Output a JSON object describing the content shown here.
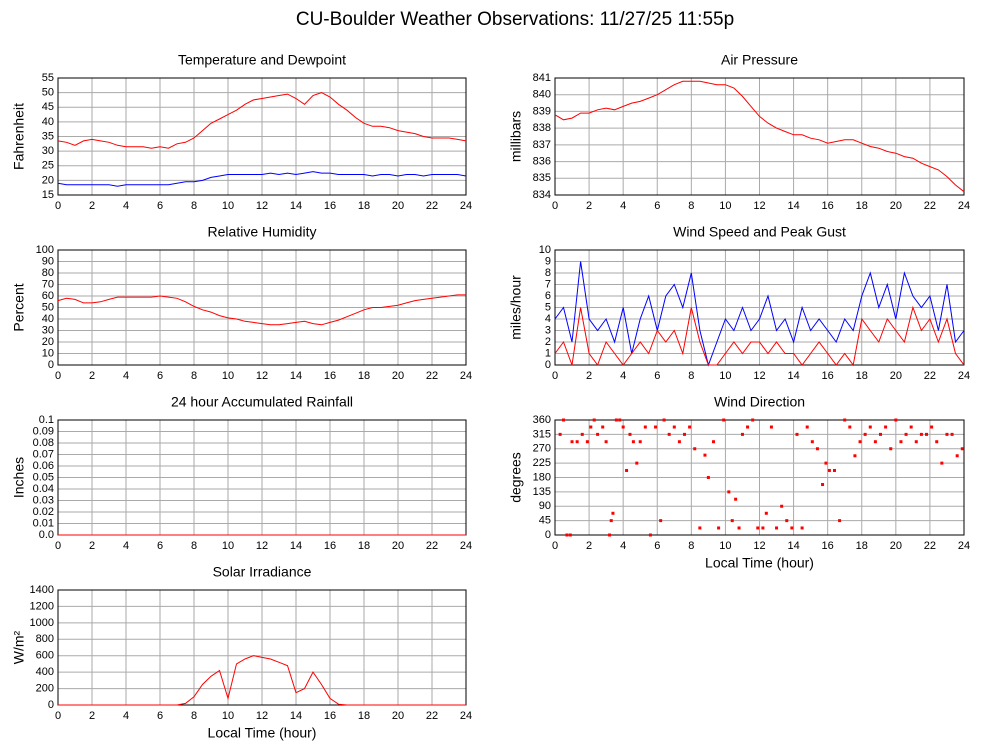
{
  "title": "CU-Boulder Weather Observations: 11/27/25 11:55p",
  "chart_data": [
    {
      "type": "line",
      "title": "Temperature and Dewpoint",
      "y_label": "Fahrenheit",
      "grid": true,
      "xlim": [
        0,
        24
      ],
      "xticks": [
        0,
        2,
        4,
        6,
        8,
        10,
        12,
        14,
        16,
        18,
        20,
        22,
        24
      ],
      "ylim": [
        15,
        55
      ],
      "yticks": [
        15,
        20,
        25,
        30,
        35,
        40,
        45,
        50,
        55
      ],
      "x": [
        0,
        0.5,
        1,
        1.5,
        2,
        2.5,
        3,
        3.5,
        4,
        4.5,
        5,
        5.5,
        6,
        6.5,
        7,
        7.5,
        8,
        8.5,
        9,
        9.5,
        10,
        10.5,
        11,
        11.5,
        12,
        12.5,
        13,
        13.5,
        14,
        14.5,
        15,
        15.5,
        16,
        16.5,
        17,
        17.5,
        18,
        18.5,
        19,
        19.5,
        20,
        20.5,
        21,
        21.5,
        22,
        22.5,
        23,
        23.5,
        24
      ],
      "series": [
        {
          "color": "#ff0000",
          "values": [
            33.5,
            33,
            32,
            33.5,
            34,
            33.5,
            33,
            32,
            31.5,
            31.5,
            31.5,
            31,
            31.5,
            31,
            32.5,
            33,
            34.5,
            37,
            39.5,
            41,
            42.5,
            44,
            46,
            47.5,
            48,
            48.5,
            49,
            49.5,
            48,
            46,
            49,
            50,
            48.5,
            46,
            44,
            41.5,
            39.5,
            38.5,
            38.5,
            38,
            37,
            36.5,
            36,
            35,
            34.5,
            34.5,
            34.5,
            34,
            33.5
          ]
        },
        {
          "color": "#0000ff",
          "values": [
            19,
            18.5,
            18.5,
            18.5,
            18.5,
            18.5,
            18.5,
            18,
            18.5,
            18.5,
            18.5,
            18.5,
            18.5,
            18.5,
            19,
            19.5,
            19.5,
            20,
            21,
            21.5,
            22,
            22,
            22,
            22,
            22,
            22.5,
            22,
            22.5,
            22,
            22.5,
            23,
            22.5,
            22.5,
            22,
            22,
            22,
            22,
            21.5,
            22,
            22,
            21.5,
            22,
            22,
            21.5,
            22,
            22,
            22,
            22,
            21.5
          ]
        }
      ]
    },
    {
      "type": "line",
      "title": "Air Pressure",
      "y_label": "millibars",
      "grid": true,
      "xlim": [
        0,
        24
      ],
      "xticks": [
        0,
        2,
        4,
        6,
        8,
        10,
        12,
        14,
        16,
        18,
        20,
        22,
        24
      ],
      "ylim": [
        834,
        841
      ],
      "yticks": [
        834,
        835,
        836,
        837,
        838,
        839,
        840,
        841
      ],
      "x": [
        0,
        0.5,
        1,
        1.5,
        2,
        2.5,
        3,
        3.5,
        4,
        4.5,
        5,
        5.5,
        6,
        6.5,
        7,
        7.5,
        8,
        8.5,
        9,
        9.5,
        10,
        10.5,
        11,
        11.5,
        12,
        12.5,
        13,
        13.5,
        14,
        14.5,
        15,
        15.5,
        16,
        16.5,
        17,
        17.5,
        18,
        18.5,
        19,
        19.5,
        20,
        20.5,
        21,
        21.5,
        22,
        22.5,
        23,
        23.5,
        24
      ],
      "series": [
        {
          "color": "#ff0000",
          "values": [
            838.8,
            838.5,
            838.6,
            838.9,
            838.9,
            839.1,
            839.2,
            839.1,
            839.3,
            839.5,
            839.6,
            839.8,
            840,
            840.3,
            840.6,
            840.8,
            840.8,
            840.8,
            840.7,
            840.6,
            840.6,
            840.4,
            839.9,
            839.3,
            838.7,
            838.3,
            838,
            837.8,
            837.6,
            837.6,
            837.4,
            837.3,
            837.1,
            837.2,
            837.3,
            837.3,
            837.1,
            836.9,
            836.8,
            836.6,
            836.5,
            836.3,
            836.2,
            835.9,
            835.7,
            835.5,
            835.1,
            834.6,
            834.2
          ]
        }
      ]
    },
    {
      "type": "line",
      "title": "Relative Humidity",
      "y_label": "Percent",
      "grid": true,
      "xlim": [
        0,
        24
      ],
      "xticks": [
        0,
        2,
        4,
        6,
        8,
        10,
        12,
        14,
        16,
        18,
        20,
        22,
        24
      ],
      "ylim": [
        0,
        100
      ],
      "yticks": [
        0,
        10,
        20,
        30,
        40,
        50,
        60,
        70,
        80,
        90,
        100
      ],
      "x": [
        0,
        0.5,
        1,
        1.5,
        2,
        2.5,
        3,
        3.5,
        4,
        4.5,
        5,
        5.5,
        6,
        6.5,
        7,
        7.5,
        8,
        8.5,
        9,
        9.5,
        10,
        10.5,
        11,
        11.5,
        12,
        12.5,
        13,
        13.5,
        14,
        14.5,
        15,
        15.5,
        16,
        16.5,
        17,
        17.5,
        18,
        18.5,
        19,
        19.5,
        20,
        20.5,
        21,
        21.5,
        22,
        22.5,
        23,
        23.5,
        24
      ],
      "series": [
        {
          "color": "#ff0000",
          "values": [
            56,
            58,
            57,
            54,
            54,
            55,
            57,
            59,
            59,
            59,
            59,
            59,
            60,
            59,
            58,
            55,
            51,
            48,
            46,
            43,
            41,
            40,
            38,
            37,
            36,
            35,
            35,
            36,
            37,
            38,
            36,
            35,
            37,
            39,
            42,
            45,
            48,
            50,
            50,
            51,
            52,
            54,
            56,
            57,
            58,
            59,
            60,
            61,
            61
          ]
        }
      ]
    },
    {
      "type": "line",
      "title": "Wind Speed and Peak Gust",
      "y_label": "miles/hour",
      "grid": true,
      "xlim": [
        0,
        24
      ],
      "xticks": [
        0,
        2,
        4,
        6,
        8,
        10,
        12,
        14,
        16,
        18,
        20,
        22,
        24
      ],
      "ylim": [
        0,
        10
      ],
      "yticks": [
        0,
        1,
        2,
        3,
        4,
        5,
        6,
        7,
        8,
        9,
        10
      ],
      "x": [
        0,
        0.5,
        1,
        1.5,
        2,
        2.5,
        3,
        3.5,
        4,
        4.5,
        5,
        5.5,
        6,
        6.5,
        7,
        7.5,
        8,
        8.5,
        9,
        9.5,
        10,
        10.5,
        11,
        11.5,
        12,
        12.5,
        13,
        13.5,
        14,
        14.5,
        15,
        15.5,
        16,
        16.5,
        17,
        17.5,
        18,
        18.5,
        19,
        19.5,
        20,
        20.5,
        21,
        21.5,
        22,
        22.5,
        23,
        23.5,
        24
      ],
      "series": [
        {
          "color": "#0000ff",
          "values": [
            4,
            5,
            2,
            9,
            4,
            3,
            4,
            2,
            5,
            1,
            4,
            6,
            3,
            6,
            7,
            5,
            8,
            3,
            0,
            2,
            4,
            3,
            5,
            3,
            4,
            6,
            3,
            4,
            2,
            5,
            3,
            4,
            3,
            2,
            4,
            3,
            6,
            8,
            5,
            7,
            4,
            8,
            6,
            5,
            6,
            3,
            7,
            2,
            3
          ]
        },
        {
          "color": "#ff0000",
          "values": [
            1,
            2,
            0,
            5,
            1,
            0,
            2,
            1,
            0,
            1,
            2,
            1,
            3,
            2,
            3,
            1,
            5,
            2,
            0,
            0,
            1,
            2,
            1,
            2,
            2,
            1,
            2,
            1,
            1,
            0,
            1,
            2,
            1,
            0,
            1,
            0,
            4,
            3,
            2,
            4,
            3,
            2,
            5,
            3,
            4,
            2,
            4,
            1,
            0
          ]
        }
      ]
    },
    {
      "type": "line",
      "title": "24 hour Accumulated Rainfall",
      "y_label": "Inches",
      "grid": true,
      "xlim": [
        0,
        24
      ],
      "xticks": [
        0,
        2,
        4,
        6,
        8,
        10,
        12,
        14,
        16,
        18,
        20,
        22,
        24
      ],
      "ylim": [
        0,
        0.1
      ],
      "yticks": [
        {
          "value": 0,
          "label": "0.0"
        },
        0.01,
        0.02,
        0.03,
        0.04,
        0.05,
        0.06,
        0.07,
        0.08,
        0.09,
        0.1
      ],
      "x": [
        0,
        24
      ],
      "series": [
        {
          "color": "#ff0000",
          "values": [
            0,
            0
          ]
        }
      ]
    },
    {
      "type": "scatter",
      "title": "Wind Direction",
      "y_label": "degrees",
      "x_label": "Local Time (hour)",
      "grid": true,
      "xlim": [
        0,
        24
      ],
      "xticks": [
        0,
        2,
        4,
        6,
        8,
        10,
        12,
        14,
        16,
        18,
        20,
        22,
        24
      ],
      "ylim": [
        0,
        360
      ],
      "yticks": [
        0,
        45,
        90,
        135,
        180,
        225,
        270,
        315,
        360
      ],
      "x": [
        0.3,
        0.5,
        0.7,
        0.9,
        1,
        1.3,
        1.6,
        1.9,
        2.1,
        2.3,
        2.5,
        2.8,
        3,
        3.2,
        3.3,
        3.4,
        3.6,
        3.8,
        4,
        4.2,
        4.4,
        4.6,
        4.8,
        5,
        5.3,
        5.6,
        5.9,
        6.2,
        6.4,
        6.7,
        7,
        7.3,
        7.6,
        7.9,
        8.2,
        8.5,
        8.8,
        9,
        9.3,
        9.6,
        9.9,
        10.2,
        10.4,
        10.6,
        10.8,
        11,
        11.3,
        11.6,
        11.9,
        12.2,
        12.4,
        12.7,
        13,
        13.3,
        13.6,
        13.9,
        14.2,
        14.5,
        14.8,
        15.1,
        15.4,
        15.7,
        15.9,
        16.1,
        16.4,
        16.7,
        17,
        17.3,
        17.6,
        17.9,
        18.2,
        18.5,
        18.8,
        19.1,
        19.4,
        19.7,
        20,
        20.3,
        20.6,
        20.9,
        21.2,
        21.5,
        21.8,
        22.1,
        22.4,
        22.7,
        23,
        23.3,
        23.6,
        23.9
      ],
      "series": [
        {
          "color": "#ff0000",
          "values": [
            315,
            360,
            0,
            0,
            292,
            292,
            315,
            292,
            338,
            360,
            315,
            338,
            292,
            0,
            45,
            68,
            360,
            360,
            338,
            202,
            315,
            292,
            225,
            292,
            338,
            0,
            338,
            45,
            360,
            315,
            338,
            292,
            315,
            338,
            270,
            22,
            250,
            180,
            292,
            22,
            360,
            135,
            45,
            112,
            22,
            315,
            338,
            360,
            22,
            22,
            68,
            338,
            22,
            90,
            45,
            22,
            315,
            22,
            338,
            292,
            270,
            158,
            225,
            202,
            202,
            45,
            360,
            338,
            248,
            292,
            315,
            338,
            292,
            315,
            338,
            270,
            360,
            292,
            315,
            338,
            292,
            315,
            315,
            338,
            292,
            225,
            315,
            315,
            248,
            270
          ]
        }
      ]
    },
    {
      "type": "line",
      "title": "Solar Irradiance",
      "y_label": "W/m²",
      "x_label": "Local Time (hour)",
      "grid": true,
      "xlim": [
        0,
        24
      ],
      "xticks": [
        0,
        2,
        4,
        6,
        8,
        10,
        12,
        14,
        16,
        18,
        20,
        22,
        24
      ],
      "ylim": [
        0,
        1400
      ],
      "yticks": [
        0,
        200,
        400,
        600,
        800,
        1000,
        1200,
        1400
      ],
      "x": [
        0,
        0.5,
        1,
        1.5,
        2,
        2.5,
        3,
        3.5,
        4,
        4.5,
        5,
        5.5,
        6,
        6.5,
        7,
        7.5,
        8,
        8.5,
        9,
        9.5,
        10,
        10.5,
        11,
        11.5,
        12,
        12.5,
        13,
        13.5,
        14,
        14.5,
        15,
        15.5,
        16,
        16.5,
        17,
        17.5,
        18,
        18.5,
        19,
        19.5,
        20,
        20.5,
        21,
        21.5,
        22,
        22.5,
        23,
        23.5,
        24
      ],
      "series": [
        {
          "color": "#ff0000",
          "values": [
            0,
            0,
            0,
            0,
            0,
            0,
            0,
            0,
            0,
            0,
            0,
            0,
            0,
            0,
            0,
            20,
            100,
            250,
            350,
            420,
            80,
            500,
            560,
            600,
            580,
            560,
            520,
            480,
            150,
            200,
            400,
            250,
            80,
            10,
            0,
            0,
            0,
            0,
            0,
            0,
            0,
            0,
            0,
            0,
            0,
            0,
            0,
            0,
            0
          ]
        }
      ]
    }
  ]
}
